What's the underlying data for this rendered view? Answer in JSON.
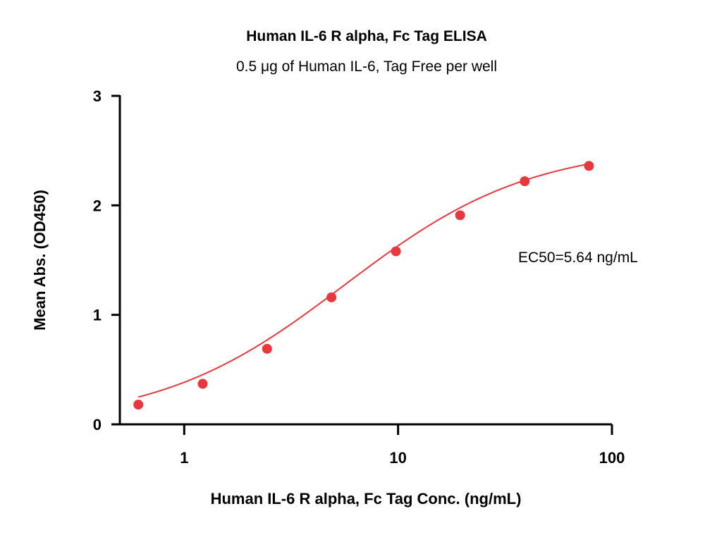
{
  "chart_data": {
    "type": "scatter",
    "title": "Human IL-6 R alpha, Fc Tag ELISA",
    "subtitle": "0.5 μg of Human IL-6, Tag Free per well",
    "xlabel": "Human IL-6 R alpha, Fc Tag Conc. (ng/mL)",
    "ylabel": "Mean Abs. (OD450)",
    "x_scale": "log",
    "xlim": [
      0.5,
      100
    ],
    "ylim": [
      0,
      3
    ],
    "x_ticks": [
      1,
      10,
      100
    ],
    "x_tick_labels": [
      "1",
      "10",
      "100"
    ],
    "y_ticks": [
      0,
      1,
      2,
      3
    ],
    "y_tick_labels": [
      "0",
      "1",
      "2",
      "3"
    ],
    "grid": false,
    "legend": "none",
    "point_color": "#e8383d",
    "series": [
      {
        "x": [
          0.61,
          1.22,
          2.44,
          4.88,
          9.77,
          19.5,
          39.1,
          78.1
        ],
        "y": [
          0.18,
          0.37,
          0.69,
          1.16,
          1.58,
          1.91,
          2.22,
          2.36
        ]
      }
    ],
    "fit_curve": {
      "type": "4PL",
      "bottom": 0.0,
      "top": 2.55,
      "ec50": 5.64,
      "hill": 1.0
    },
    "annotations": [
      "EC50=5.64 ng/mL"
    ]
  }
}
